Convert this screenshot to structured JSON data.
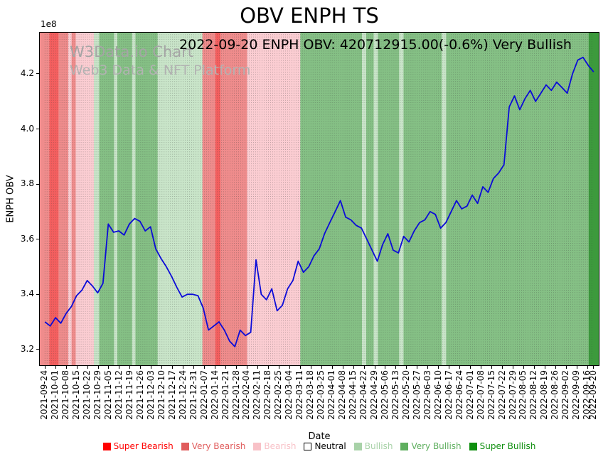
{
  "title": "OBV ENPH TS",
  "annotation": "2022-09-20 ENPH OBV: 420712915.00(-0.6%) Very Bullish",
  "watermark": {
    "line1": "W3Data.io Chart",
    "line2": "Web3 Data & NFT Platform"
  },
  "axes": {
    "ylabel": "ENPH OBV",
    "xlabel": "Date",
    "offset_text": "1e8"
  },
  "chart_data": {
    "type": "line",
    "title": "OBV ENPH TS",
    "xlabel": "Date",
    "ylabel": "ENPH OBV",
    "units_note": "y values in units of 1e8",
    "ylim": [
      3.14,
      4.352
    ],
    "yticks": [
      3.2,
      3.4,
      3.6,
      3.8,
      4.0,
      4.2
    ],
    "ytick_labels": [
      "3.2",
      "3.4",
      "3.6",
      "3.8",
      "4.0",
      "4.2"
    ],
    "x_tick_labels": [
      "2021-09-24",
      "2021-10-01",
      "2021-10-08",
      "2021-10-15",
      "2021-10-22",
      "2021-10-29",
      "2021-11-05",
      "2021-11-12",
      "2021-11-19",
      "2021-11-26",
      "2021-12-03",
      "2021-12-10",
      "2021-12-17",
      "2021-12-24",
      "2021-12-31",
      "2022-01-07",
      "2022-01-14",
      "2022-01-21",
      "2022-01-28",
      "2022-02-04",
      "2022-02-11",
      "2022-02-18",
      "2022-02-25",
      "2022-03-04",
      "2022-03-11",
      "2022-03-18",
      "2022-03-25",
      "2022-04-01",
      "2022-04-08",
      "2022-04-15",
      "2022-04-22",
      "2022-04-29",
      "2022-05-06",
      "2022-05-13",
      "2022-05-20",
      "2022-05-27",
      "2022-06-03",
      "2022-06-10",
      "2022-06-17",
      "2022-06-24",
      "2022-07-01",
      "2022-07-08",
      "2022-07-15",
      "2022-07-22",
      "2022-07-29",
      "2022-08-05",
      "2022-08-12",
      "2022-08-19",
      "2022-08-26",
      "2022-09-02",
      "2022-09-09",
      "2022-09-16",
      "2022-09-20"
    ],
    "x_total_weeks": 51.571,
    "x_margin_weeks": 0.55,
    "grid_step_weeks": 0.2,
    "line_color": "#0b0bd8",
    "series": [
      {
        "name": "ENPH OBV",
        "values": [
          3.3,
          3.285,
          3.315,
          3.295,
          3.33,
          3.355,
          3.395,
          3.415,
          3.45,
          3.43,
          3.405,
          3.44,
          3.655,
          3.625,
          3.63,
          3.615,
          3.655,
          3.675,
          3.665,
          3.63,
          3.645,
          3.565,
          3.53,
          3.5,
          3.465,
          3.425,
          3.39,
          3.4,
          3.4,
          3.395,
          3.35,
          3.27,
          3.285,
          3.3,
          3.27,
          3.23,
          3.21,
          3.27,
          3.25,
          3.262,
          3.525,
          3.4,
          3.38,
          3.42,
          3.34,
          3.36,
          3.42,
          3.45,
          3.52,
          3.48,
          3.5,
          3.54,
          3.565,
          3.62,
          3.66,
          3.7,
          3.74,
          3.68,
          3.67,
          3.65,
          3.64,
          3.6,
          3.56,
          3.52,
          3.58,
          3.62,
          3.56,
          3.55,
          3.61,
          3.59,
          3.63,
          3.66,
          3.67,
          3.7,
          3.69,
          3.64,
          3.66,
          3.7,
          3.74,
          3.71,
          3.72,
          3.76,
          3.73,
          3.79,
          3.77,
          3.82,
          3.84,
          3.87,
          4.08,
          4.12,
          4.07,
          4.11,
          4.14,
          4.1,
          4.13,
          4.16,
          4.14,
          4.17,
          4.15,
          4.13,
          4.2,
          4.25,
          4.26,
          4.23,
          4.207
        ]
      }
    ],
    "sentiment_bands": [
      [
        -1.0,
        0.4,
        "very_bearish"
      ],
      [
        0.4,
        1.3,
        "super_bearish"
      ],
      [
        1.3,
        2.2,
        "very_bearish"
      ],
      [
        2.2,
        2.5,
        "bearish"
      ],
      [
        2.5,
        2.9,
        "very_bearish"
      ],
      [
        2.9,
        4.6,
        "bearish"
      ],
      [
        4.6,
        5.1,
        "bullish"
      ],
      [
        5.1,
        6.5,
        "very_bullish"
      ],
      [
        6.5,
        6.8,
        "bullish"
      ],
      [
        6.8,
        8.2,
        "very_bullish"
      ],
      [
        8.2,
        8.5,
        "bullish"
      ],
      [
        8.5,
        10.6,
        "very_bullish"
      ],
      [
        10.6,
        14.8,
        "bullish"
      ],
      [
        14.8,
        16.0,
        "very_bearish"
      ],
      [
        16.0,
        16.5,
        "super_bearish"
      ],
      [
        16.5,
        19.0,
        "very_bearish"
      ],
      [
        19.0,
        24.0,
        "bearish"
      ],
      [
        24.0,
        29.8,
        "very_bullish"
      ],
      [
        29.8,
        30.2,
        "bullish"
      ],
      [
        30.2,
        30.9,
        "very_bullish"
      ],
      [
        30.9,
        31.3,
        "bullish"
      ],
      [
        31.3,
        33.3,
        "very_bullish"
      ],
      [
        33.3,
        33.7,
        "bullish"
      ],
      [
        33.7,
        37.3,
        "very_bullish"
      ],
      [
        37.3,
        37.7,
        "bullish"
      ],
      [
        37.7,
        51.1,
        "very_bullish"
      ],
      [
        51.1,
        53.0,
        "super_bullish"
      ]
    ],
    "band_colors": {
      "super_bearish": "#f45f5f",
      "very_bearish": "#ef8c8c",
      "bearish": "#fbcdd2",
      "neutral": "#ffffff",
      "bullish": "#c9e5c9",
      "very_bullish": "#85c085",
      "super_bullish": "#3c9a3c"
    },
    "legend": [
      {
        "label": "Super Bearish",
        "color": "#ff0000",
        "text_color": "#ff0000"
      },
      {
        "label": "Very Bearish",
        "color": "#e05c5c",
        "text_color": "#e05c5c"
      },
      {
        "label": "Bearish",
        "color": "#f8c1c7",
        "text_color": "#f8c1c7"
      },
      {
        "label": "Neutral",
        "color": "#ffffff",
        "text_color": "#000000",
        "edge": "#000000"
      },
      {
        "label": "Bullish",
        "color": "#a8d2a8",
        "text_color": "#a8d2a8"
      },
      {
        "label": "Very Bullish",
        "color": "#5faf5f",
        "text_color": "#5faf5f"
      },
      {
        "label": "Super Bullish",
        "color": "#0f8f0f",
        "text_color": "#0f8f0f"
      }
    ]
  }
}
